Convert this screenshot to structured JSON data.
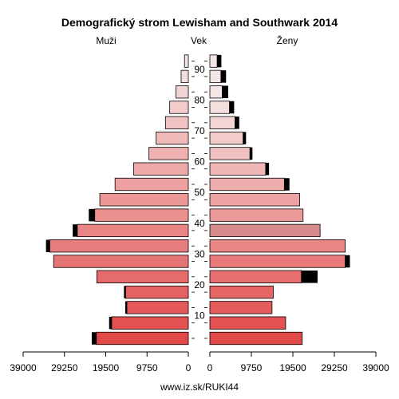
{
  "chart_data": {
    "type": "bar",
    "title": "Demografický strom Lewisham and Southwark 2014",
    "left_label": "Muži",
    "center_label": "Vek",
    "right_label": "Ženy",
    "footer": "www.iz.sk/RUKI44",
    "xlim": [
      0,
      39000
    ],
    "x_ticks_left": [
      "39000",
      "29250",
      "19500",
      "9750",
      "0"
    ],
    "x_ticks_right": [
      "0",
      "9750",
      "19500",
      "29250",
      "39000"
    ],
    "age_ticks": [
      "10",
      "20",
      "30",
      "40",
      "50",
      "60",
      "70",
      "80",
      "90"
    ],
    "age_groups": [
      "0-4",
      "5-9",
      "10-14",
      "15-19",
      "20-24",
      "25-29",
      "30-34",
      "35-39",
      "40-44",
      "45-49",
      "50-54",
      "55-59",
      "60-64",
      "65-69",
      "70-74",
      "75-79",
      "80-84",
      "85-89",
      "90+"
    ],
    "series": [
      {
        "name": "Muži",
        "values": [
          21700,
          18100,
          14500,
          14800,
          21600,
          31800,
          32700,
          26200,
          22100,
          20900,
          17300,
          12900,
          9300,
          7600,
          5400,
          4400,
          2900,
          1700,
          900
        ],
        "extra": [
          1100,
          600,
          400,
          400,
          0,
          0,
          900,
          1100,
          1400,
          0,
          0,
          0,
          0,
          0,
          0,
          0,
          0,
          0,
          0
        ]
      },
      {
        "name": "Ženy",
        "values": [
          21700,
          17800,
          14600,
          14900,
          21500,
          31800,
          31800,
          25900,
          21900,
          21100,
          17500,
          13100,
          9400,
          7800,
          5900,
          4600,
          2900,
          2600,
          1700
        ],
        "extra": [
          0,
          0,
          0,
          0,
          3800,
          1100,
          0,
          0,
          0,
          0,
          1200,
          800,
          600,
          700,
          1000,
          1100,
          1400,
          1200,
          1000
        ]
      }
    ],
    "colors": {
      "bar_dark": "#e24848",
      "bar_light": "#f5e6e6",
      "extra": "#000000",
      "outline": "#000000"
    }
  }
}
